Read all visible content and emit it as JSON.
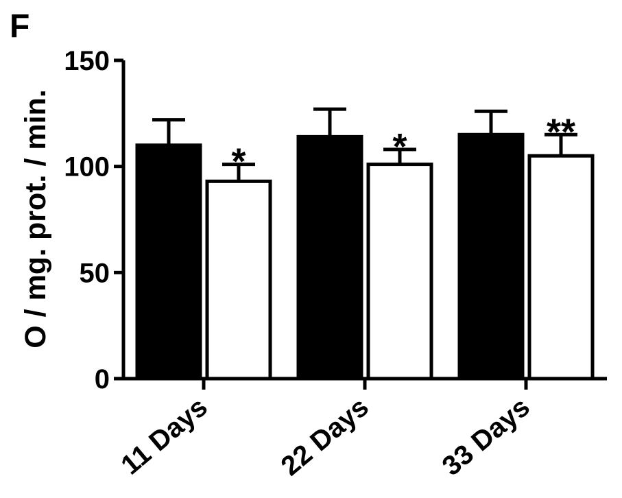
{
  "panel_label": "F",
  "chart_data": {
    "type": "bar",
    "title": "",
    "xlabel": "",
    "ylabel": "O / mg. prot. / min.",
    "ylim": [
      0,
      150
    ],
    "yticks": [
      0,
      50,
      100,
      150
    ],
    "ytick_labels": [
      "0",
      "50",
      "100",
      "150"
    ],
    "grid": false,
    "legend": "none",
    "categories": [
      "11 Days",
      "22 Days",
      "33 Days"
    ],
    "series": [
      {
        "color": "#000000",
        "values": [
          110,
          114,
          115
        ],
        "errors": [
          12,
          13,
          11
        ],
        "annotations": [
          "",
          "",
          ""
        ]
      },
      {
        "color": "#ffffff",
        "values": [
          93,
          101,
          105
        ],
        "errors": [
          8,
          7,
          10
        ],
        "annotations": [
          "*",
          "*",
          "**"
        ]
      }
    ]
  }
}
